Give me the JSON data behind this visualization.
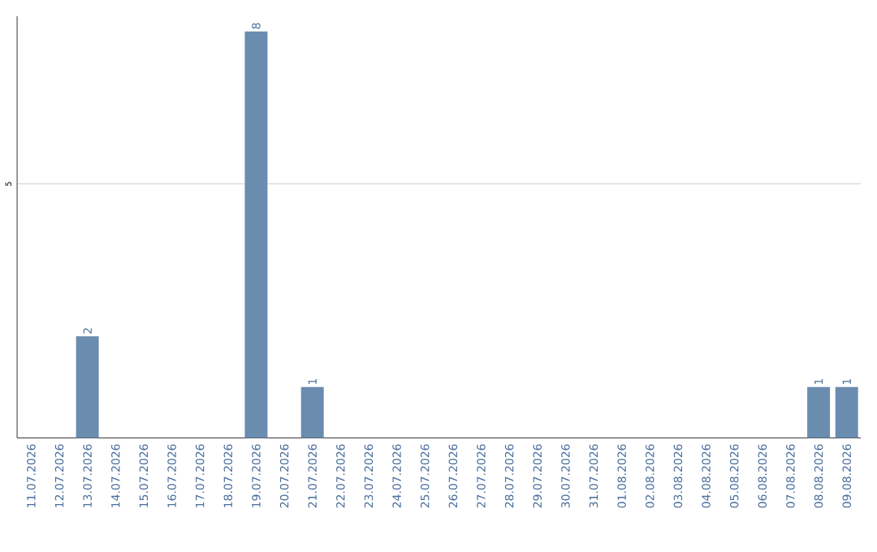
{
  "chart_data": {
    "type": "bar",
    "categories": [
      "11.07.2026",
      "12.07.2026",
      "13.07.2026",
      "14.07.2026",
      "15.07.2026",
      "16.07.2026",
      "17.07.2026",
      "18.07.2026",
      "19.07.2026",
      "20.07.2026",
      "21.07.2026",
      "22.07.2026",
      "23.07.2026",
      "24.07.2026",
      "25.07.2026",
      "26.07.2026",
      "27.07.2026",
      "28.07.2026",
      "29.07.2026",
      "30.07.2026",
      "31.07.2026",
      "01.08.2026",
      "02.08.2026",
      "03.08.2026",
      "04.08.2026",
      "05.08.2026",
      "06.08.2026",
      "07.08.2026",
      "08.08.2026",
      "09.08.2026"
    ],
    "values": [
      0,
      0,
      2,
      0,
      0,
      0,
      0,
      0,
      8,
      0,
      1,
      0,
      0,
      0,
      0,
      0,
      0,
      0,
      0,
      0,
      0,
      0,
      0,
      0,
      0,
      0,
      0,
      0,
      1,
      1
    ],
    "value_labels": [
      null,
      null,
      "2",
      null,
      null,
      null,
      null,
      null,
      "8",
      null,
      "1",
      null,
      null,
      null,
      null,
      null,
      null,
      null,
      null,
      null,
      null,
      null,
      null,
      null,
      null,
      null,
      null,
      null,
      "1",
      "1"
    ],
    "color": "#6a8caf",
    "ylim": [
      0,
      8.3
    ],
    "yticks": [
      5
    ],
    "grid": "y"
  }
}
